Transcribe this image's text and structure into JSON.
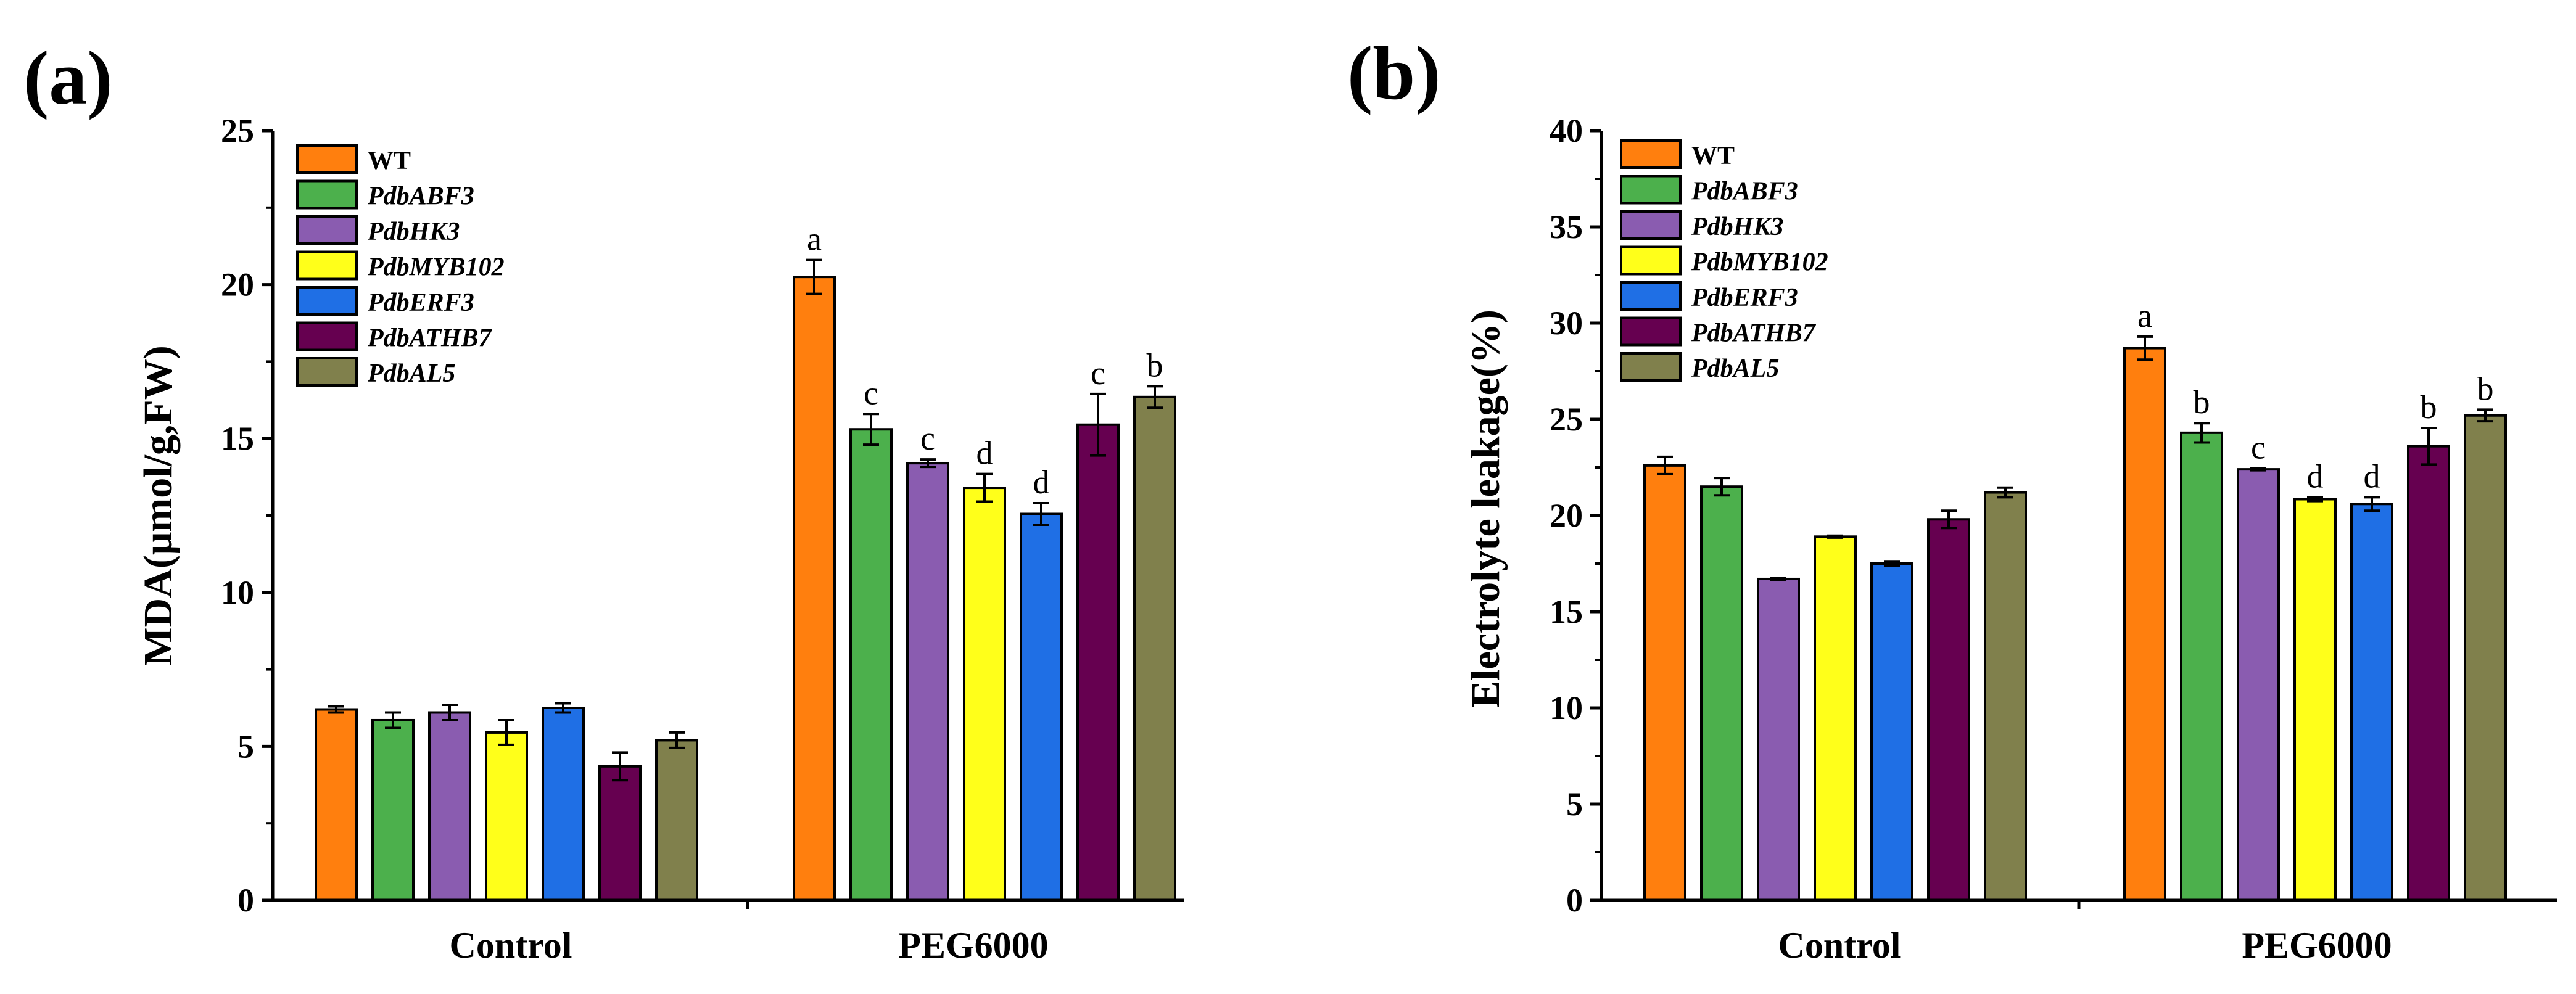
{
  "panels": [
    {
      "label": "(a)",
      "type": "bar",
      "ylabel": "MDA(μmol/g,FW)",
      "ylim": [
        0,
        25
      ],
      "yticks": [
        0,
        5,
        10,
        15,
        20,
        25
      ],
      "categories": [
        "Control",
        "PEG6000"
      ]
    },
    {
      "label": "(b)",
      "type": "bar",
      "ylabel": "Electrolyte leakage(%)",
      "ylim": [
        0,
        40
      ],
      "yticks": [
        0,
        5,
        10,
        15,
        20,
        25,
        30,
        35,
        40
      ],
      "categories": [
        "Control",
        "PEG6000"
      ]
    }
  ],
  "legend": [
    {
      "name": "WT",
      "italic": false,
      "color": "#FF7F0E"
    },
    {
      "name": "PdbABF3",
      "italic": true,
      "color": "#4CB04C"
    },
    {
      "name": "PdbHK3",
      "italic": true,
      "color": "#8A5CB0"
    },
    {
      "name": "PdbMYB102",
      "italic": true,
      "color": "#FFFF1A"
    },
    {
      "name": "PdbERF3",
      "italic": true,
      "color": "#1F6FE5"
    },
    {
      "name": "PdbATHB7",
      "italic": true,
      "color": "#660050"
    },
    {
      "name": "PdbAL5",
      "italic": true,
      "color": "#80804C"
    }
  ],
  "chart_data": [
    {
      "type": "bar",
      "title": "(a)",
      "xlabel": "",
      "ylabel": "MDA(μmol/g,FW)",
      "ylim": [
        0,
        25
      ],
      "categories": [
        "Control",
        "PEG6000"
      ],
      "series": [
        {
          "name": "WT",
          "values": [
            6.2,
            20.25
          ],
          "errors": [
            0.1,
            0.55
          ],
          "sig": [
            "",
            "a"
          ]
        },
        {
          "name": "PdbABF3",
          "values": [
            5.85,
            15.3
          ],
          "errors": [
            0.25,
            0.5
          ],
          "sig": [
            "",
            "c"
          ]
        },
        {
          "name": "PdbHK3",
          "values": [
            6.1,
            14.2
          ],
          "errors": [
            0.25,
            0.12
          ],
          "sig": [
            "",
            "c"
          ]
        },
        {
          "name": "PdbMYB102",
          "values": [
            5.45,
            13.4
          ],
          "errors": [
            0.4,
            0.45
          ],
          "sig": [
            "",
            "d"
          ]
        },
        {
          "name": "PdbERF3",
          "values": [
            6.25,
            12.55
          ],
          "errors": [
            0.15,
            0.35
          ],
          "sig": [
            "",
            "d"
          ]
        },
        {
          "name": "PdbATHB7",
          "values": [
            4.35,
            15.45
          ],
          "errors": [
            0.45,
            1.0
          ],
          "sig": [
            "",
            "c"
          ]
        },
        {
          "name": "PdbAL5",
          "values": [
            5.2,
            16.35
          ],
          "errors": [
            0.25,
            0.35
          ],
          "sig": [
            "",
            "b"
          ]
        }
      ]
    },
    {
      "type": "bar",
      "title": "(b)",
      "xlabel": "",
      "ylabel": "Electrolyte leakage(%)",
      "ylim": [
        0,
        40
      ],
      "categories": [
        "Control",
        "PEG6000"
      ],
      "series": [
        {
          "name": "WT",
          "values": [
            22.6,
            28.7
          ],
          "errors": [
            0.45,
            0.6
          ],
          "sig": [
            "",
            "a"
          ]
        },
        {
          "name": "PdbABF3",
          "values": [
            21.5,
            24.3
          ],
          "errors": [
            0.45,
            0.5
          ],
          "sig": [
            "",
            "b"
          ]
        },
        {
          "name": "PdbHK3",
          "values": [
            16.7,
            22.4
          ],
          "errors": [
            0.05,
            0.05
          ],
          "sig": [
            "",
            "c"
          ]
        },
        {
          "name": "PdbMYB102",
          "values": [
            18.9,
            20.85
          ],
          "errors": [
            0.05,
            0.1
          ],
          "sig": [
            "",
            "d"
          ]
        },
        {
          "name": "PdbERF3",
          "values": [
            17.5,
            20.6
          ],
          "errors": [
            0.12,
            0.35
          ],
          "sig": [
            "",
            "d"
          ]
        },
        {
          "name": "PdbATHB7",
          "values": [
            19.8,
            23.6
          ],
          "errors": [
            0.45,
            0.95
          ],
          "sig": [
            "",
            "b"
          ]
        },
        {
          "name": "PdbAL5",
          "values": [
            21.2,
            25.2
          ],
          "errors": [
            0.25,
            0.3
          ],
          "sig": [
            "",
            "b"
          ]
        }
      ]
    }
  ]
}
